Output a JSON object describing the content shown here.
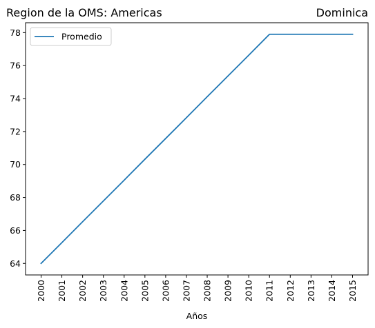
{
  "chart_data": {
    "type": "line",
    "title_left": "Region de la OMS: Americas",
    "title_right": "Dominica",
    "xlabel": "Años",
    "ylabel": "",
    "x": [
      "2000",
      "2001",
      "2002",
      "2003",
      "2004",
      "2005",
      "2006",
      "2007",
      "2008",
      "2009",
      "2010",
      "2011",
      "2012",
      "2013",
      "2014",
      "2015"
    ],
    "series": [
      {
        "name": "Promedio",
        "color": "#1f77b4",
        "values": [
          64.0,
          65.26,
          66.53,
          67.79,
          69.05,
          70.32,
          71.58,
          72.84,
          74.11,
          75.37,
          76.63,
          77.9,
          77.9,
          77.9,
          77.9,
          77.9
        ]
      }
    ],
    "yticks": [
      64,
      66,
      68,
      70,
      72,
      74,
      76,
      78
    ],
    "ylim": [
      63.3,
      78.6
    ],
    "grid": false,
    "legend_position": "upper-left"
  }
}
